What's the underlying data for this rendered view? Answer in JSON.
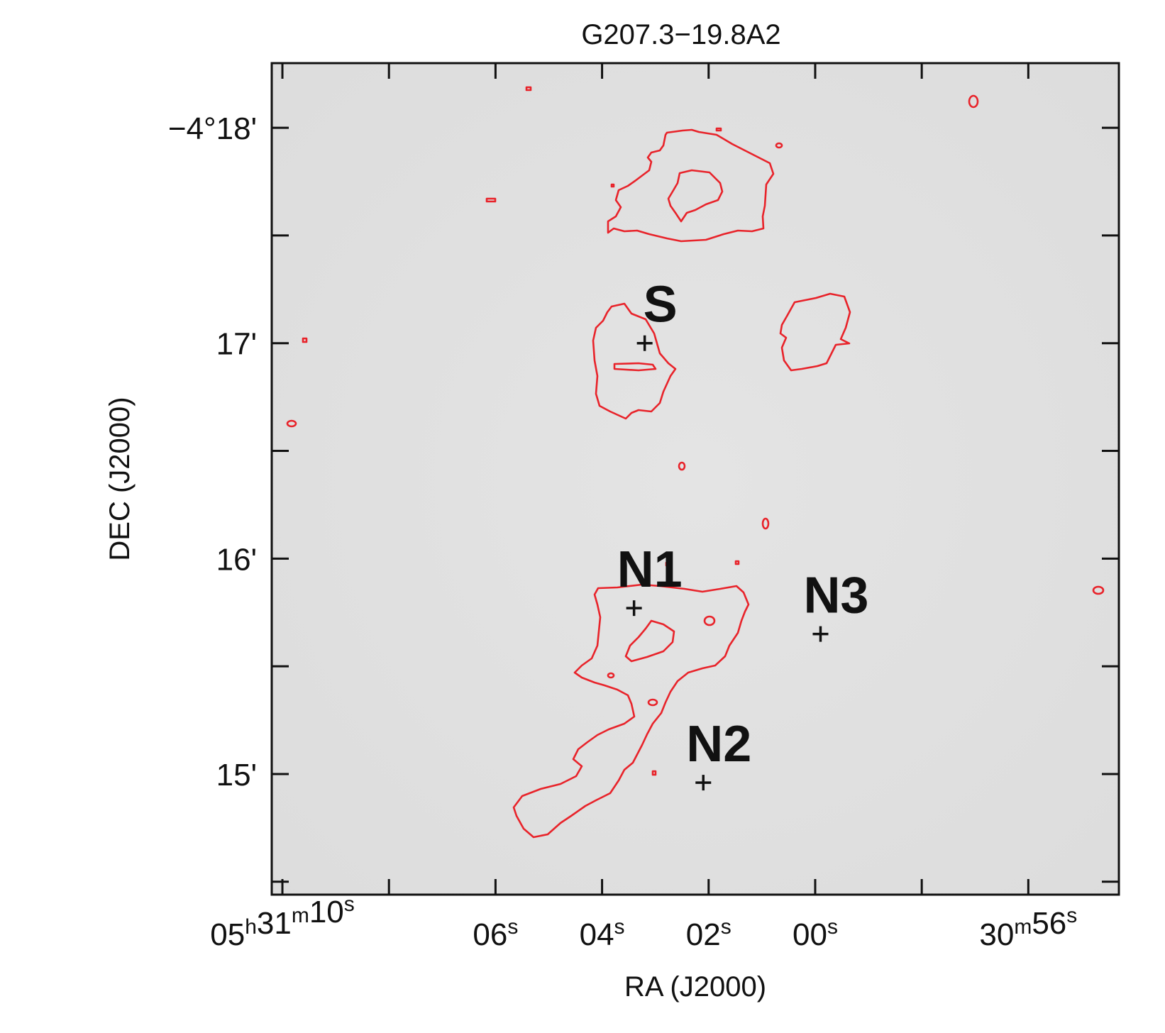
{
  "chart_data": {
    "type": "scatter",
    "title": "G207.3−19.8A2",
    "xlabel": "RA (J2000)",
    "ylabel": "DEC (J2000)",
    "x_unit": "RA seconds past 05h30m",
    "y_unit": "arcmin (DEC = −4° y')",
    "xlim": [
      70.2,
      54.3
    ],
    "ylim": [
      18.3,
      14.44
    ],
    "x_ticks": [
      {
        "value": 70,
        "label": "05h31m10s"
      },
      {
        "value": 68,
        "label": ""
      },
      {
        "value": 66,
        "label": "06s"
      },
      {
        "value": 64,
        "label": "04s"
      },
      {
        "value": 62,
        "label": "02s"
      },
      {
        "value": 60,
        "label": "00s"
      },
      {
        "value": 58,
        "label": ""
      },
      {
        "value": 56,
        "label": "30m56s"
      }
    ],
    "y_ticks": [
      {
        "value": 14.5,
        "label": ""
      },
      {
        "value": 15.0,
        "label": "15'"
      },
      {
        "value": 15.5,
        "label": ""
      },
      {
        "value": 16.0,
        "label": "16'"
      },
      {
        "value": 16.5,
        "label": ""
      },
      {
        "value": 17.0,
        "label": "17'"
      },
      {
        "value": 17.5,
        "label": ""
      },
      {
        "value": 18.0,
        "label": "−4°18'"
      }
    ],
    "sources": [
      {
        "name": "N2",
        "ra_s": 62.1,
        "dec_arcmin": 14.96
      },
      {
        "name": "N1",
        "ra_s": 63.4,
        "dec_arcmin": 15.77
      },
      {
        "name": "N3",
        "ra_s": 59.9,
        "dec_arcmin": 15.65
      },
      {
        "name": "S",
        "ra_s": 63.2,
        "dec_arcmin": 17.0
      }
    ],
    "contour_color": "#e8232a",
    "image_colormap": "gray",
    "grid": false
  }
}
